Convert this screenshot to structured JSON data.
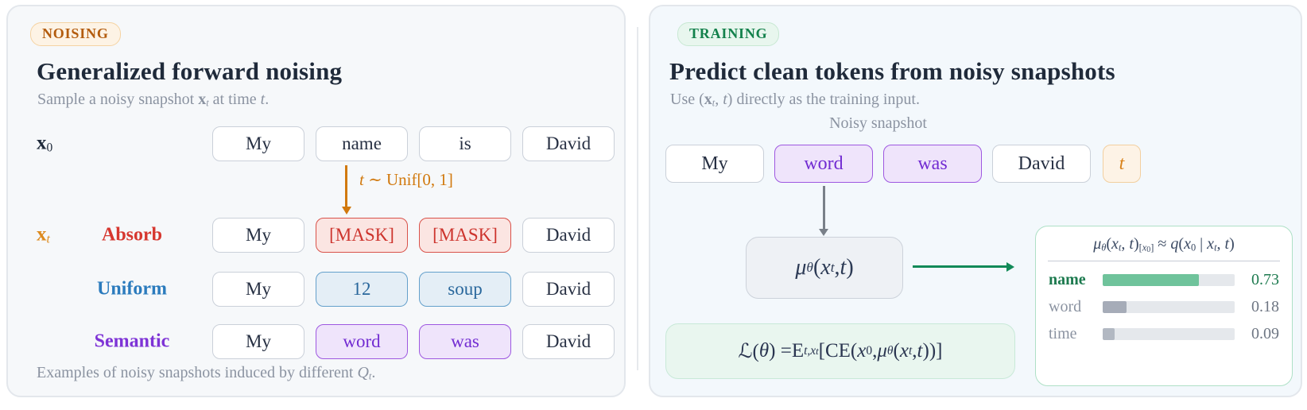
{
  "colors": {
    "noising_accent": "#b35c0e",
    "training_accent": "#13814c",
    "arrow_orange": "#d1790e",
    "arrow_gray": "#798089",
    "arrow_green": "#128a58",
    "absorb_red": "#d6372f",
    "uniform_blue": "#2b7bbd",
    "semantic_purple": "#7e33d6",
    "xt_orange": "#dd8a1e",
    "bar_green": "#6fc39b",
    "muted_gray_text": "#8b93a1"
  },
  "left_panel": {
    "badge": "NOISING",
    "title": "Generalized forward noising",
    "subtitle": [
      [
        "n",
        "Sample a noisy snapshot "
      ],
      [
        "b",
        "x"
      ],
      [
        "sb",
        "t"
      ],
      [
        "n",
        " at time "
      ],
      [
        "i",
        "t"
      ],
      [
        "n",
        "."
      ]
    ],
    "x0_label": [
      [
        "b",
        "x"
      ],
      [
        "sbn",
        "0"
      ]
    ],
    "x0_tokens": [
      {
        "t": "My",
        "v": "plain"
      },
      {
        "t": "name",
        "v": "plain"
      },
      {
        "t": "is",
        "v": "plain"
      },
      {
        "t": "David",
        "v": "plain"
      }
    ],
    "noise_arrow_label": [
      [
        "i",
        "t"
      ],
      [
        "n",
        " ∼ Unif[0, 1]"
      ]
    ],
    "xt_label": [
      [
        "b",
        "x"
      ],
      [
        "sb",
        "t"
      ]
    ],
    "variants": [
      {
        "name": "Absorb",
        "color": "#d6372f",
        "tokens": [
          {
            "t": "My",
            "v": "plain"
          },
          {
            "t": "[MASK]",
            "v": "red"
          },
          {
            "t": "[MASK]",
            "v": "red"
          },
          {
            "t": "David",
            "v": "plain"
          }
        ]
      },
      {
        "name": "Uniform",
        "color": "#2b7bbd",
        "tokens": [
          {
            "t": "My",
            "v": "plain"
          },
          {
            "t": "12",
            "v": "blue"
          },
          {
            "t": "soup",
            "v": "blue"
          },
          {
            "t": "David",
            "v": "plain"
          }
        ]
      },
      {
        "name": "Semantic",
        "color": "#7e33d6",
        "tokens": [
          {
            "t": "My",
            "v": "plain"
          },
          {
            "t": "word",
            "v": "purple"
          },
          {
            "t": "was",
            "v": "purple"
          },
          {
            "t": "David",
            "v": "plain"
          }
        ]
      }
    ],
    "caption": [
      [
        "n",
        "Examples of noisy snapshots induced by different "
      ],
      [
        "i",
        "Q"
      ],
      [
        "sb",
        "t"
      ],
      [
        "n",
        "."
      ]
    ]
  },
  "right_panel": {
    "badge": "TRAINING",
    "title": "Predict clean tokens from noisy snapshots",
    "subtitle": [
      [
        "n",
        "Use ("
      ],
      [
        "b",
        "x"
      ],
      [
        "sb",
        "t"
      ],
      [
        "n",
        ", "
      ],
      [
        "i",
        "t"
      ],
      [
        "n",
        ") directly as the training input."
      ]
    ],
    "snapshot_label": "Noisy snapshot",
    "tokens": [
      {
        "t": "My",
        "v": "plain"
      },
      {
        "t": "word",
        "v": "purple"
      },
      {
        "t": "was",
        "v": "purple"
      },
      {
        "t": "David",
        "v": "plain"
      },
      {
        "t": "t",
        "v": "time"
      }
    ],
    "model_formula": [
      [
        "i",
        "μ"
      ],
      [
        "sb",
        "θ"
      ],
      [
        "n",
        "("
      ],
      [
        "i",
        "x"
      ],
      [
        "sb",
        "t"
      ],
      [
        "n",
        ", "
      ],
      [
        "i",
        "t"
      ],
      [
        "n",
        ")"
      ]
    ],
    "prediction": {
      "header": [
        [
          "i",
          "μ"
        ],
        [
          "sb",
          "θ"
        ],
        [
          "n",
          "("
        ],
        [
          "i",
          "x"
        ],
        [
          "sb",
          "t"
        ],
        [
          "n",
          ", "
        ],
        [
          "i",
          "t"
        ],
        [
          "n",
          ")"
        ],
        [
          "sbn",
          "["
        ],
        [
          "sb",
          "x"
        ],
        [
          "ssn",
          "0"
        ],
        [
          "sbn",
          "]"
        ],
        [
          "n",
          " ≈ "
        ],
        [
          "i",
          "q"
        ],
        [
          "n",
          "("
        ],
        [
          "i",
          "x"
        ],
        [
          "sbn",
          "0"
        ],
        [
          "n",
          " | "
        ],
        [
          "i",
          "x"
        ],
        [
          "sb",
          "t"
        ],
        [
          "n",
          ", "
        ],
        [
          "i",
          "t"
        ],
        [
          "n",
          ")"
        ]
      ],
      "rows": [
        {
          "label": "name",
          "value": "0.73",
          "pct": 73,
          "emphasis": true,
          "label_color": "#1d7a4f",
          "value_color": "#1d7a4f",
          "fill_color": "#6fc39b"
        },
        {
          "label": "word",
          "value": "0.18",
          "pct": 18,
          "emphasis": false,
          "label_color": "#8b93a1",
          "value_color": "#6e7683",
          "fill_color": "#a6acb8"
        },
        {
          "label": "time",
          "value": "0.09",
          "pct": 9,
          "emphasis": false,
          "label_color": "#8b93a1",
          "value_color": "#6e7683",
          "fill_color": "#b2b8c2"
        }
      ]
    },
    "loss_formula": [
      [
        "n",
        "ℒ("
      ],
      [
        "i",
        "θ"
      ],
      [
        "n",
        ") = "
      ],
      [
        "n",
        "E"
      ],
      [
        "sb",
        "t,x"
      ],
      [
        "ss",
        "t"
      ],
      [
        "n",
        " [CE("
      ],
      [
        "i",
        "x"
      ],
      [
        "sbn",
        "0"
      ],
      [
        "n",
        ", "
      ],
      [
        "i",
        "μ"
      ],
      [
        "sb",
        "θ"
      ],
      [
        "n",
        "("
      ],
      [
        "i",
        "x"
      ],
      [
        "sb",
        "t"
      ],
      [
        "n",
        ", "
      ],
      [
        "i",
        "t"
      ],
      [
        "n",
        "))]"
      ]
    ]
  }
}
